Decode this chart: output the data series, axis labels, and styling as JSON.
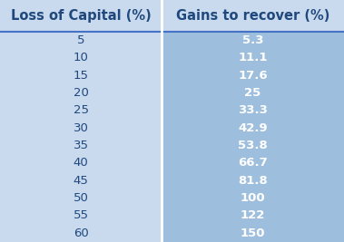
{
  "col1_header": "Loss of Capital (%)",
  "col2_header": "Gains to recover (%)",
  "col1_values": [
    "5",
    "10",
    "15",
    "20",
    "25",
    "30",
    "35",
    "40",
    "45",
    "50",
    "55",
    "60"
  ],
  "col2_values": [
    "5.3",
    "11.1",
    "17.6",
    "25",
    "33.3",
    "42.9",
    "53.8",
    "66.7",
    "81.8",
    "100",
    "122",
    "150"
  ],
  "header_bg": "#C9D9EE",
  "col1_bg": "#C9D9EE",
  "col2_bg": "#9DBEDD",
  "header_text_color": "#1F497D",
  "col1_text_color": "#1F497D",
  "col2_text_color": "#FFFFFF",
  "header_fontsize": 10.5,
  "data_fontsize": 9.5,
  "header_underline_color": "#4472C4",
  "col_divider_color": "#FFFFFF",
  "fig_bg": "#C9D9EE"
}
